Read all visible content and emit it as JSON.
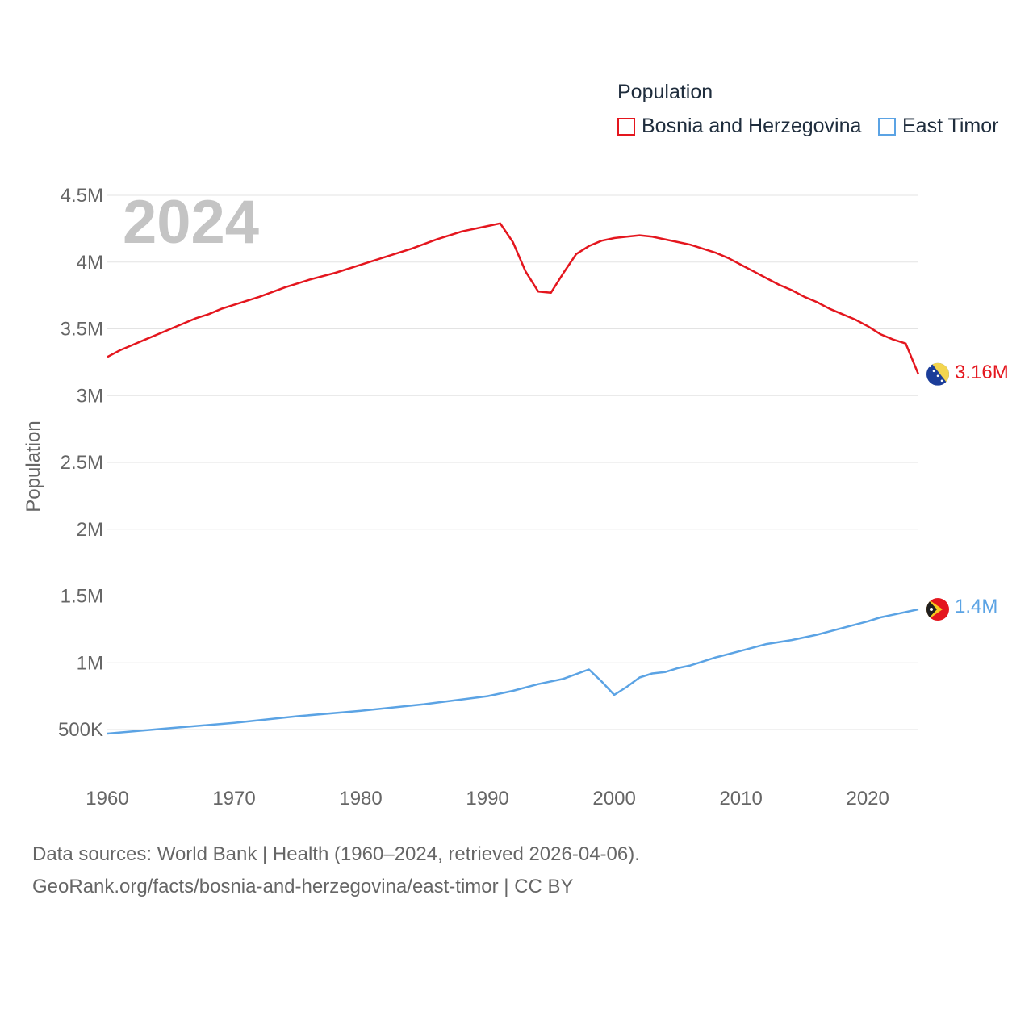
{
  "legend": {
    "title": "Population"
  },
  "year_label": "2024",
  "footer": {
    "line1": "Data sources: World Bank | Health (1960–2024, retrieved 2026-04-06).",
    "line2": "GeoRank.org/facts/bosnia-and-herzegovina/east-timor | CC BY"
  },
  "chart_data": {
    "type": "line",
    "ylabel": "Population",
    "xlabel": "",
    "xlim": [
      1960,
      2024
    ],
    "ylim": [
      300000,
      4500000
    ],
    "x_ticks": [
      1960,
      1970,
      1980,
      1990,
      2000,
      2010,
      2020
    ],
    "y_ticks": [
      {
        "value": 500000,
        "label": "500K"
      },
      {
        "value": 1000000,
        "label": "1M"
      },
      {
        "value": 1500000,
        "label": "1.5M"
      },
      {
        "value": 2000000,
        "label": "2M"
      },
      {
        "value": 2500000,
        "label": "2.5M"
      },
      {
        "value": 3000000,
        "label": "3M"
      },
      {
        "value": 3500000,
        "label": "3.5M"
      },
      {
        "value": 4000000,
        "label": "4M"
      },
      {
        "value": 4500000,
        "label": "4.5M"
      }
    ],
    "series": [
      {
        "name": "Bosnia and Herzegovina",
        "color": "#e4161e",
        "end_label": "3.16M",
        "flag": "bosnia-flag",
        "x": [
          1960,
          1961,
          1962,
          1963,
          1964,
          1965,
          1966,
          1967,
          1968,
          1969,
          1970,
          1972,
          1974,
          1976,
          1978,
          1980,
          1982,
          1984,
          1986,
          1988,
          1990,
          1991,
          1992,
          1993,
          1994,
          1995,
          1996,
          1997,
          1998,
          1999,
          2000,
          2001,
          2002,
          2003,
          2004,
          2005,
          2006,
          2007,
          2008,
          2009,
          2010,
          2011,
          2012,
          2013,
          2014,
          2015,
          2016,
          2017,
          2018,
          2019,
          2020,
          2021,
          2022,
          2023,
          2024
        ],
        "values": [
          3290000,
          3340000,
          3380000,
          3420000,
          3460000,
          3500000,
          3540000,
          3580000,
          3610000,
          3650000,
          3680000,
          3740000,
          3810000,
          3870000,
          3920000,
          3980000,
          4040000,
          4100000,
          4170000,
          4230000,
          4270000,
          4290000,
          4150000,
          3930000,
          3780000,
          3770000,
          3920000,
          4060000,
          4120000,
          4160000,
          4180000,
          4190000,
          4200000,
          4190000,
          4170000,
          4150000,
          4130000,
          4100000,
          4070000,
          4030000,
          3980000,
          3930000,
          3880000,
          3830000,
          3790000,
          3740000,
          3700000,
          3650000,
          3610000,
          3570000,
          3520000,
          3460000,
          3420000,
          3390000,
          3160000
        ]
      },
      {
        "name": "East Timor",
        "color": "#5ba3e4",
        "end_label": "1.4M",
        "flag": "east-timor-flag",
        "x": [
          1960,
          1965,
          1970,
          1975,
          1980,
          1985,
          1990,
          1992,
          1994,
          1996,
          1998,
          1999,
          2000,
          2001,
          2002,
          2003,
          2004,
          2005,
          2006,
          2008,
          2010,
          2012,
          2014,
          2016,
          2018,
          2020,
          2021,
          2022,
          2024
        ],
        "values": [
          470000,
          510000,
          550000,
          600000,
          640000,
          690000,
          750000,
          790000,
          840000,
          880000,
          950000,
          860000,
          760000,
          820000,
          890000,
          920000,
          930000,
          960000,
          980000,
          1040000,
          1090000,
          1140000,
          1170000,
          1210000,
          1260000,
          1310000,
          1340000,
          1360000,
          1400000
        ]
      }
    ]
  }
}
